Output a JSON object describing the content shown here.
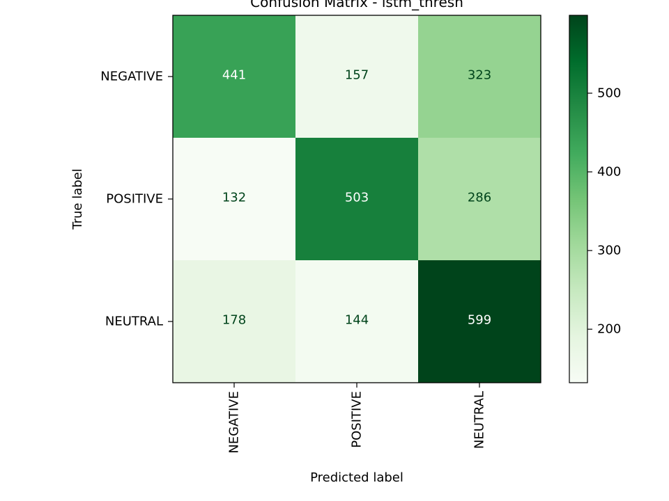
{
  "chart_data": {
    "type": "heatmap",
    "title": "Confusion Matrix - lstm_thresh",
    "xlabel": "Predicted label",
    "ylabel": "True label",
    "x_categories": [
      "NEGATIVE",
      "POSITIVE",
      "NEUTRAL"
    ],
    "y_categories": [
      "NEGATIVE",
      "POSITIVE",
      "NEUTRAL"
    ],
    "matrix": [
      [
        441,
        157,
        323
      ],
      [
        132,
        503,
        286
      ],
      [
        178,
        144,
        599
      ]
    ],
    "colormap": "Greens",
    "color_range": [
      132,
      599
    ],
    "colorbar_ticks": [
      200,
      300,
      400,
      500
    ],
    "grid": false
  }
}
